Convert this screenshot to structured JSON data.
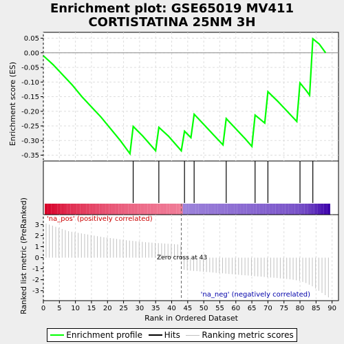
{
  "title_line1": "Enrichment plot: GSE65019 MV411",
  "title_line2": "CORTISTATINA 25NM 3H",
  "legend": {
    "enrichment_profile": "Enrichment profile",
    "hits": "Hits",
    "ranking_metric_scores": "Ranking metric scores"
  },
  "colors": {
    "enrichment": "#00ff00",
    "hits": "#000000",
    "ranking": "#c0c0c0",
    "pos_label": "#cc0000",
    "neg_label": "#0000aa"
  },
  "chart_data": [
    {
      "type": "line",
      "ylabel": "Enrichment score (ES)",
      "ylim": [
        -0.37,
        0.07
      ],
      "yticks": [
        0.05,
        0.0,
        -0.05,
        -0.1,
        -0.15,
        -0.2,
        -0.25,
        -0.3,
        -0.35
      ],
      "ytick_labels": [
        "0.05",
        "0.00",
        "-0.05",
        "-0.10",
        "-0.15",
        "-0.20",
        "-0.25",
        "-0.30",
        "-0.35"
      ],
      "xlim": [
        0,
        92
      ],
      "grid": true,
      "x": [
        0,
        3,
        6,
        9,
        12,
        15,
        18,
        21,
        24,
        27,
        28,
        31,
        35,
        36,
        39,
        43,
        44,
        46,
        47,
        50,
        53,
        56,
        57,
        60,
        63,
        65,
        66,
        69,
        70,
        73,
        76,
        79,
        80,
        82,
        83,
        84,
        86,
        88
      ],
      "y": [
        -0.01,
        -0.04,
        -0.075,
        -0.11,
        -0.15,
        -0.185,
        -0.22,
        -0.26,
        -0.3,
        -0.345,
        -0.252,
        -0.285,
        -0.335,
        -0.255,
        -0.285,
        -0.335,
        -0.268,
        -0.29,
        -0.21,
        -0.245,
        -0.28,
        -0.315,
        -0.225,
        -0.26,
        -0.295,
        -0.32,
        -0.213,
        -0.24,
        -0.133,
        -0.165,
        -0.2,
        -0.235,
        -0.103,
        -0.13,
        -0.145,
        0.048,
        0.03,
        0.0
      ]
    },
    {
      "type": "scatter",
      "name": "Hits",
      "x": [
        28,
        36,
        44,
        47,
        57,
        66,
        70,
        80,
        84
      ]
    },
    {
      "type": "bar",
      "ylabel": "Ranked list metric (PreRanked)",
      "xlabel": "Rank in Ordered Dataset",
      "ylim": [
        -3.9,
        3.9
      ],
      "yticks": [
        3,
        2,
        1,
        0,
        -1,
        -2,
        -3
      ],
      "xlim": [
        0,
        92
      ],
      "xticks": [
        0,
        5,
        10,
        15,
        20,
        25,
        30,
        35,
        40,
        45,
        50,
        55,
        60,
        65,
        70,
        75,
        80,
        85,
        90
      ],
      "grid": true,
      "x": [
        0,
        1,
        2,
        3,
        4,
        5,
        6,
        7,
        8,
        9,
        10,
        11,
        12,
        13,
        14,
        15,
        16,
        17,
        18,
        19,
        20,
        21,
        22,
        23,
        24,
        25,
        26,
        27,
        28,
        29,
        30,
        31,
        32,
        33,
        34,
        35,
        36,
        37,
        38,
        39,
        40,
        41,
        42,
        43,
        44,
        45,
        46,
        47,
        48,
        49,
        50,
        51,
        52,
        53,
        54,
        55,
        56,
        57,
        58,
        59,
        60,
        61,
        62,
        63,
        64,
        65,
        66,
        67,
        68,
        69,
        70,
        71,
        72,
        73,
        74,
        75,
        76,
        77,
        78,
        79,
        80,
        81,
        82,
        83,
        84,
        85,
        86,
        87,
        88
      ],
      "values": [
        3.1,
        3.0,
        2.9,
        2.8,
        2.7,
        2.6,
        2.5,
        2.4,
        2.35,
        2.3,
        2.25,
        2.2,
        2.15,
        2.1,
        2.05,
        2.0,
        1.95,
        1.9,
        1.85,
        1.82,
        1.78,
        1.74,
        1.7,
        1.66,
        1.62,
        1.58,
        1.55,
        1.52,
        1.49,
        1.46,
        1.43,
        1.4,
        1.38,
        1.36,
        1.34,
        1.32,
        1.3,
        1.28,
        1.26,
        1.24,
        1.22,
        1.2,
        1.18,
        -1.1,
        -1.15,
        -1.18,
        -1.2,
        -1.22,
        -1.25,
        -1.28,
        -1.3,
        -1.32,
        -1.35,
        -1.38,
        -1.4,
        -1.42,
        -1.45,
        -1.48,
        -1.5,
        -1.52,
        -1.55,
        -1.58,
        -1.6,
        -1.62,
        -1.65,
        -1.68,
        -1.7,
        -1.72,
        -1.75,
        -1.78,
        -1.8,
        -1.82,
        -1.85,
        -1.88,
        -1.9,
        -1.93,
        -1.96,
        -2.0,
        -2.05,
        -2.1,
        -2.2,
        -2.3,
        -2.45,
        -2.6,
        -2.8,
        -3.0,
        -3.2,
        -3.4,
        -3.6
      ],
      "zero_cross_rank": 43,
      "annotations": {
        "pos": "'na_pos' (positively correlated)",
        "neg": "'na_neg' (negatively correlated)",
        "zero_cross": "Zero cross at 43"
      }
    }
  ]
}
